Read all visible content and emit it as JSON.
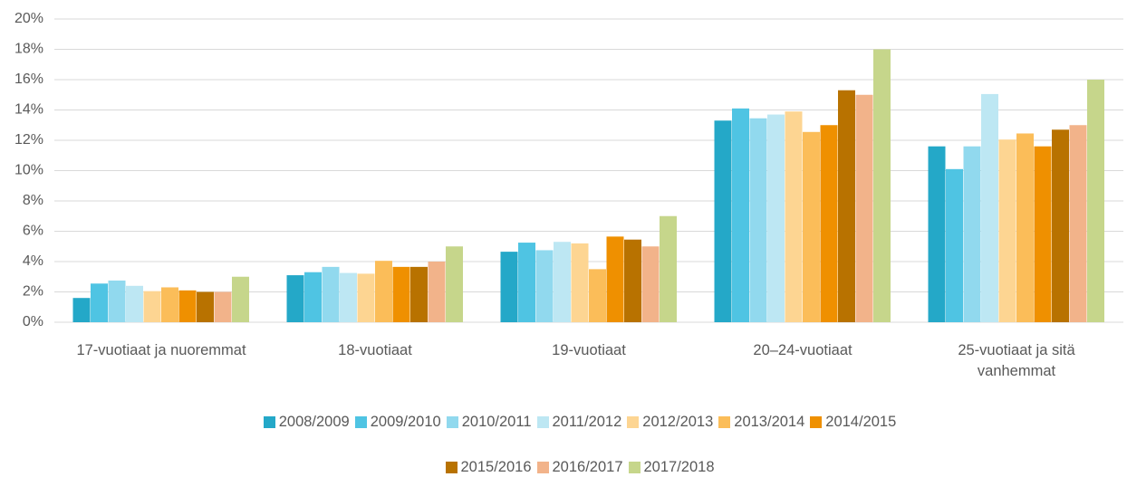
{
  "chart_data": {
    "type": "bar",
    "categories": [
      "17-vuotiaat ja nuoremmat",
      "18-vuotiaat",
      "19-vuotiaat",
      "20–24-vuotiaat",
      "25-vuotiaat ja sitä vanhemmat"
    ],
    "series": [
      {
        "name": "2008/2009",
        "color": "#24a8c8",
        "values": [
          1.6,
          3.1,
          4.65,
          13.3,
          11.6
        ]
      },
      {
        "name": "2009/2010",
        "color": "#4fc4e3",
        "values": [
          2.55,
          3.3,
          5.25,
          14.1,
          10.1
        ]
      },
      {
        "name": "2010/2011",
        "color": "#91d9ee",
        "values": [
          2.75,
          3.65,
          4.75,
          13.45,
          11.6
        ]
      },
      {
        "name": "2011/2012",
        "color": "#bde7f3",
        "values": [
          2.4,
          3.25,
          5.3,
          13.7,
          15.05
        ]
      },
      {
        "name": "2012/2013",
        "color": "#fdd592",
        "values": [
          2.05,
          3.2,
          5.2,
          13.9,
          12.05
        ]
      },
      {
        "name": "2013/2014",
        "color": "#fbbd59",
        "values": [
          2.3,
          4.05,
          3.5,
          12.55,
          12.45
        ]
      },
      {
        "name": "2014/2015",
        "color": "#ef9000",
        "values": [
          2.1,
          3.65,
          5.65,
          13.0,
          11.6
        ]
      },
      {
        "name": "2015/2016",
        "color": "#b87200",
        "values": [
          2.0,
          3.65,
          5.45,
          15.3,
          12.7
        ]
      },
      {
        "name": "2016/2017",
        "color": "#f2b38a",
        "values": [
          2.0,
          4.0,
          5.0,
          15.0,
          13.0
        ]
      },
      {
        "name": "2017/2018",
        "color": "#c6d68b",
        "values": [
          3.0,
          5.0,
          7.0,
          18.0,
          16.0
        ]
      }
    ],
    "ylim": [
      0,
      20
    ],
    "yticks": [
      {
        "value": 0,
        "label": "0%"
      },
      {
        "value": 2,
        "label": "2%"
      },
      {
        "value": 4,
        "label": "4%"
      },
      {
        "value": 6,
        "label": "6%"
      },
      {
        "value": 8,
        "label": "8%"
      },
      {
        "value": 10,
        "label": "10%"
      },
      {
        "value": 12,
        "label": "12%"
      },
      {
        "value": 14,
        "label": "14%"
      },
      {
        "value": 16,
        "label": "16%"
      },
      {
        "value": 18,
        "label": "18%"
      },
      {
        "value": 20,
        "label": "20%"
      }
    ],
    "grid": true
  }
}
